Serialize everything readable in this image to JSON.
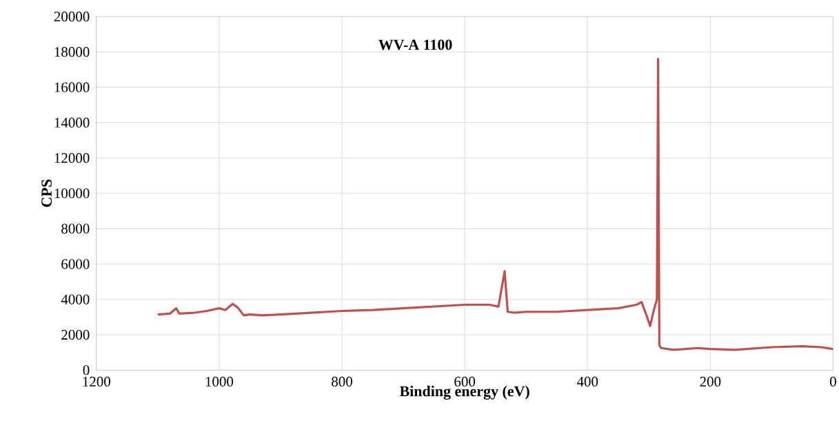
{
  "chart_data": {
    "type": "line",
    "title": "WV-A 1100",
    "xlabel": "Binding energy (eV)",
    "ylabel": "CPS",
    "x": [
      1100,
      1080,
      1070,
      1065,
      1040,
      1020,
      1000,
      990,
      978,
      970,
      960,
      950,
      930,
      900,
      850,
      800,
      750,
      700,
      650,
      600,
      560,
      545,
      535,
      530,
      520,
      500,
      450,
      400,
      350,
      320,
      312,
      305,
      298,
      292,
      287,
      285,
      283,
      280,
      260,
      220,
      200,
      160,
      100,
      50,
      20,
      0
    ],
    "series": [
      {
        "color": "#c0504d",
        "values": [
          3150,
          3200,
          3500,
          3200,
          3250,
          3350,
          3500,
          3400,
          3750,
          3550,
          3100,
          3150,
          3100,
          3150,
          3250,
          3350,
          3400,
          3500,
          3600,
          3700,
          3700,
          3600,
          5600,
          3300,
          3250,
          3300,
          3300,
          3400,
          3500,
          3700,
          3850,
          3200,
          2500,
          3400,
          4000,
          17600,
          1400,
          1250,
          1150,
          1250,
          1200,
          1150,
          1300,
          1350,
          1300,
          1200
        ]
      }
    ],
    "xlim": [
      1200,
      0
    ],
    "ylim": [
      0,
      20000
    ],
    "xticks": [
      1200,
      1000,
      800,
      600,
      400,
      200,
      0
    ],
    "yticks": [
      0,
      2000,
      4000,
      6000,
      8000,
      10000,
      12000,
      14000,
      16000,
      18000,
      20000
    ],
    "grid": true,
    "marker": "none",
    "line_style": "solid"
  }
}
